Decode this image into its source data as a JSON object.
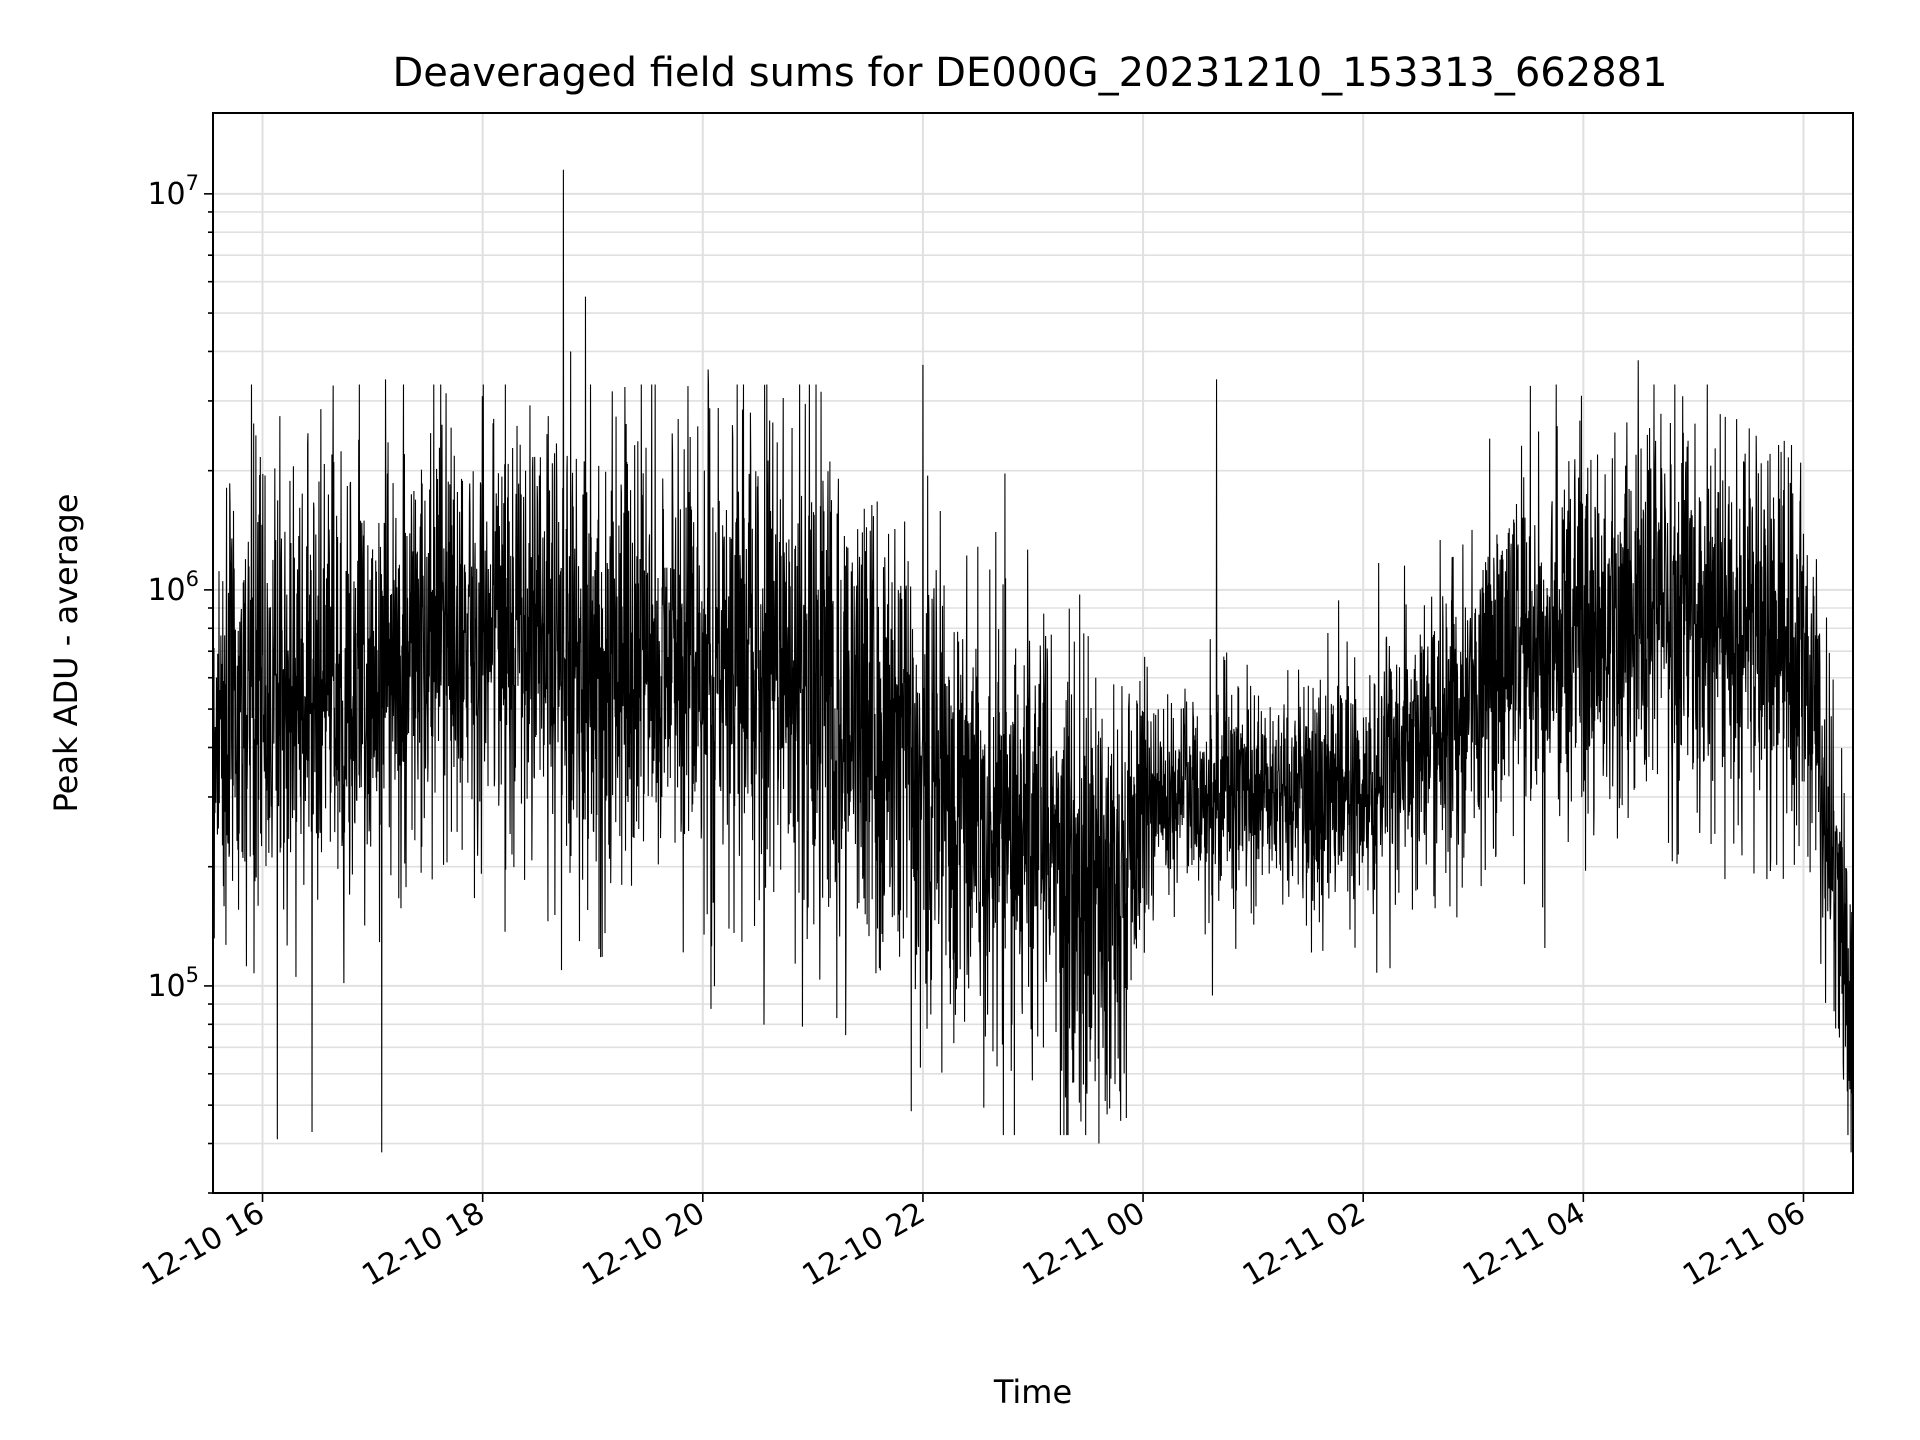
{
  "chart_data": {
    "type": "line",
    "title": "Deaveraged field sums for DE000G_20231210_153313_662881",
    "xlabel": "Time",
    "ylabel": "Peak ADU - average",
    "xscale": "time",
    "yscale": "log",
    "xlim": [
      "2023-12-10 15:33",
      "2023-12-11 06:27"
    ],
    "ylim": [
      30000,
      16000000
    ],
    "grid": true,
    "line_color": "#000000",
    "grid_color": "#e0e0e0",
    "x_ticks": [
      "12-10 16",
      "12-10 18",
      "12-10 20",
      "12-10 22",
      "12-11 00",
      "12-11 02",
      "12-11 04",
      "12-11 06"
    ],
    "y_ticks": [
      {
        "base": "10",
        "exp": "5",
        "value": 100000
      },
      {
        "base": "10",
        "exp": "6",
        "value": 1000000
      },
      {
        "base": "10",
        "exp": "7",
        "value": 10000000
      }
    ],
    "series": [
      {
        "points": "dense noisy signal, ~1 sample per 10 s",
        "envelope": [
          {
            "t": "2023-12-10 15:33",
            "median": 450000,
            "spread": 3.0
          },
          {
            "t": "2023-12-10 16:00",
            "median": 550000,
            "spread": 3.0
          },
          {
            "t": "2023-12-10 17:00",
            "median": 600000,
            "spread": 2.8
          },
          {
            "t": "2023-12-10 18:00",
            "median": 850000,
            "spread": 2.5
          },
          {
            "t": "2023-12-10 19:00",
            "median": 650000,
            "spread": 3.2
          },
          {
            "t": "2023-12-10 20:00",
            "median": 700000,
            "spread": 3.2
          },
          {
            "t": "2023-12-10 21:00",
            "median": 600000,
            "spread": 3.2
          },
          {
            "t": "2023-12-10 22:00",
            "median": 350000,
            "spread": 3.2
          },
          {
            "t": "2023-12-10 23:00",
            "median": 230000,
            "spread": 3.0
          },
          {
            "t": "2023-12-10 23:40",
            "median": 170000,
            "spread": 3.0
          },
          {
            "t": "2023-12-11 00:10",
            "median": 320000,
            "spread": 1.7
          },
          {
            "t": "2023-12-11 01:00",
            "median": 300000,
            "spread": 1.7
          },
          {
            "t": "2023-12-11 02:00",
            "median": 310000,
            "spread": 1.8
          },
          {
            "t": "2023-12-11 03:00",
            "median": 550000,
            "spread": 2.2
          },
          {
            "t": "2023-12-11 04:00",
            "median": 800000,
            "spread": 2.6
          },
          {
            "t": "2023-12-11 05:00",
            "median": 900000,
            "spread": 2.5
          },
          {
            "t": "2023-12-11 06:00",
            "median": 750000,
            "spread": 2.5
          },
          {
            "t": "2023-12-11 06:27",
            "median": 80000,
            "spread": 2.0
          }
        ],
        "notable_peaks": [
          {
            "t": "2023-12-10 18:44",
            "value": 11500000
          },
          {
            "t": "2023-12-10 18:56",
            "value": 5500000
          },
          {
            "t": "2023-12-10 18:48",
            "value": 4000000
          },
          {
            "t": "2023-12-11 04:30",
            "value": 3800000
          },
          {
            "t": "2023-12-10 22:00",
            "value": 3700000
          },
          {
            "t": "2023-12-10 20:03",
            "value": 3600000
          },
          {
            "t": "2023-12-11 00:40",
            "value": 3400000
          },
          {
            "t": "2023-12-10 17:07",
            "value": 3400000
          }
        ],
        "notable_dips": [
          {
            "t": "2023-12-10 17:05",
            "value": 38000
          },
          {
            "t": "2023-12-11 06:26",
            "value": 38000
          },
          {
            "t": "2023-12-10 23:36",
            "value": 40000
          },
          {
            "t": "2023-12-10 16:08",
            "value": 41000
          }
        ]
      }
    ]
  }
}
